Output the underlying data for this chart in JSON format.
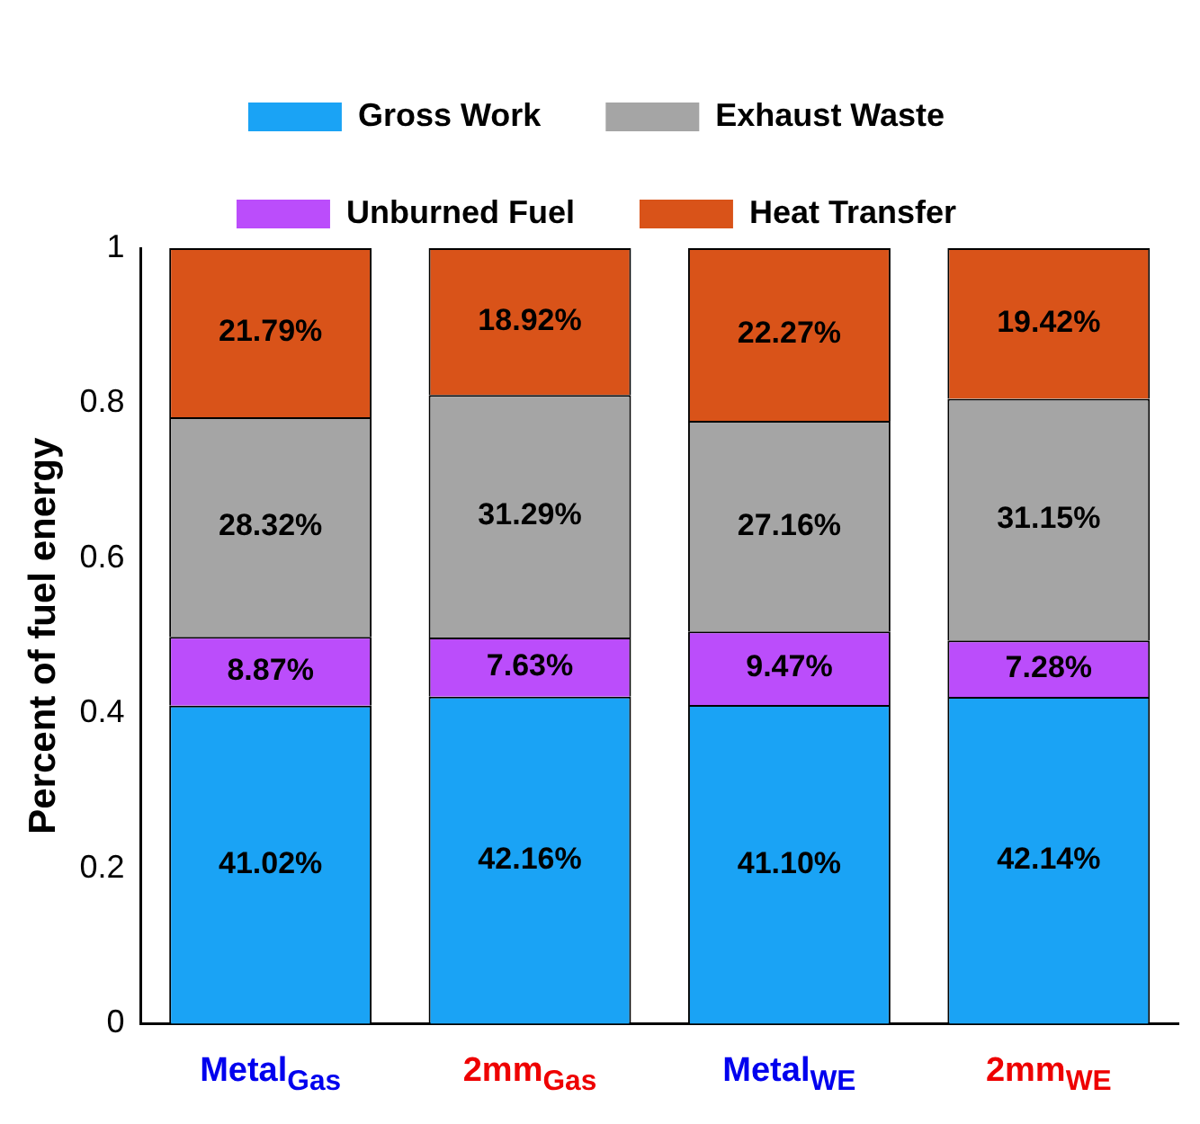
{
  "chart_data": {
    "type": "bar",
    "stacked": true,
    "ylabel": "Percent of fuel energy",
    "categories": [
      "Metal$_{Gas}$",
      "2mm$_{Gas}$",
      "Metal$_{WE}$",
      "2mm$_{WE}$"
    ],
    "series": [
      {
        "name": "Gross Work",
        "color": "#1aa3f5",
        "values": [
          0.4102,
          0.4216,
          0.411,
          0.4214
        ],
        "value_labels": [
          "41.02%",
          "42.16%",
          "41.10%",
          "42.14%"
        ]
      },
      {
        "name": "Unburned Fuel",
        "color": "#bb4dfb",
        "values": [
          0.0887,
          0.0763,
          0.0947,
          0.0728
        ],
        "value_labels": [
          "8.87%",
          "7.63%",
          "9.47%",
          "7.28%"
        ]
      },
      {
        "name": "Exhaust Waste",
        "color": "#a5a5a5",
        "values": [
          0.2832,
          0.3129,
          0.2716,
          0.3115
        ],
        "value_labels": [
          "28.32%",
          "31.29%",
          "27.16%",
          "31.15%"
        ]
      },
      {
        "name": "Heat Transfer",
        "color": "#d95319",
        "values": [
          0.2179,
          0.1892,
          0.2227,
          0.1942
        ],
        "value_labels": [
          "21.79%",
          "18.92%",
          "22.27%",
          "19.42%"
        ]
      }
    ],
    "ylim": [
      0,
      1
    ],
    "yticks": [
      0,
      0.2,
      0.4,
      0.6,
      0.8,
      1
    ],
    "grid": false,
    "legend": "top"
  }
}
